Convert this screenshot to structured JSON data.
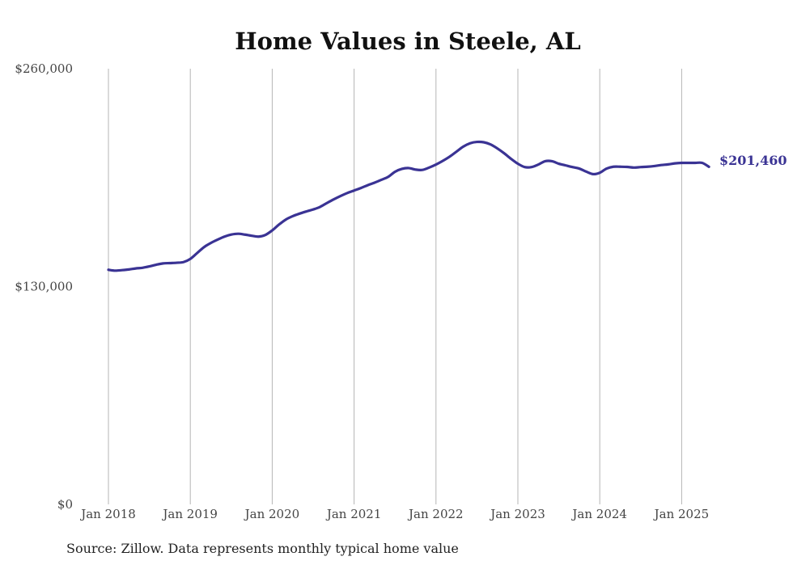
{
  "chart_data": {
    "type": "line",
    "title": "Home Values in Steele, AL",
    "xlabel": "",
    "ylabel": "",
    "x_ticks": [
      "Jan 2018",
      "Jan 2019",
      "Jan 2020",
      "Jan 2021",
      "Jan 2022",
      "Jan 2023",
      "Jan 2024",
      "Jan 2025"
    ],
    "y_ticks": [
      {
        "value": 0,
        "label": "$0"
      },
      {
        "value": 130000,
        "label": "$130,000"
      },
      {
        "value": 260000,
        "label": "$260,000"
      }
    ],
    "ylim": [
      0,
      260000
    ],
    "xlim": [
      "2018-01",
      "2025-05"
    ],
    "grid": "vertical",
    "color": "#3a3394",
    "end_label": "$201,460",
    "source": "Source: Zillow. Data represents monthly typical home value",
    "series": [
      {
        "x": [
          "2018-01",
          "2018-02",
          "2018-03",
          "2018-04",
          "2018-05",
          "2018-06",
          "2018-07",
          "2018-08",
          "2018-09",
          "2018-10",
          "2018-11",
          "2018-12",
          "2019-01",
          "2019-02",
          "2019-03",
          "2019-04",
          "2019-05",
          "2019-06",
          "2019-07",
          "2019-08",
          "2019-09",
          "2019-10",
          "2019-11",
          "2019-12",
          "2020-01",
          "2020-02",
          "2020-03",
          "2020-04",
          "2020-05",
          "2020-06",
          "2020-07",
          "2020-08",
          "2020-09",
          "2020-10",
          "2020-11",
          "2020-12",
          "2021-01",
          "2021-02",
          "2021-03",
          "2021-04",
          "2021-05",
          "2021-06",
          "2021-07",
          "2021-08",
          "2021-09",
          "2021-10",
          "2021-11",
          "2021-12",
          "2022-01",
          "2022-02",
          "2022-03",
          "2022-04",
          "2022-05",
          "2022-06",
          "2022-07",
          "2022-08",
          "2022-09",
          "2022-10",
          "2022-11",
          "2022-12",
          "2023-01",
          "2023-02",
          "2023-03",
          "2023-04",
          "2023-05",
          "2023-06",
          "2023-07",
          "2023-08",
          "2023-09",
          "2023-10",
          "2023-11",
          "2023-12",
          "2024-01",
          "2024-02",
          "2024-03",
          "2024-04",
          "2024-05",
          "2024-06",
          "2024-07",
          "2024-08",
          "2024-09",
          "2024-10",
          "2024-11",
          "2024-12",
          "2025-01",
          "2025-02",
          "2025-03",
          "2025-04",
          "2025-05"
        ],
        "values": [
          140000,
          139500,
          139800,
          140200,
          140800,
          141200,
          142000,
          143000,
          143800,
          144000,
          144200,
          144600,
          146500,
          150000,
          153500,
          156000,
          158000,
          159800,
          161000,
          161500,
          161000,
          160300,
          159800,
          160800,
          163500,
          167000,
          170000,
          172000,
          173500,
          174800,
          176000,
          177500,
          179800,
          182000,
          184000,
          185800,
          187300,
          188800,
          190500,
          192000,
          193700,
          195500,
          198500,
          200200,
          200700,
          199800,
          199600,
          201000,
          202800,
          205000,
          207500,
          210500,
          213500,
          215500,
          216300,
          216100,
          214800,
          212400,
          209500,
          206200,
          203300,
          201300,
          201300,
          202800,
          204800,
          204800,
          203300,
          202300,
          201300,
          200400,
          198600,
          197100,
          197900,
          200400,
          201500,
          201500,
          201400,
          201000,
          201300,
          201500,
          201900,
          202500,
          202900,
          203500,
          203800,
          203800,
          203800,
          203800,
          201460
        ]
      }
    ]
  }
}
